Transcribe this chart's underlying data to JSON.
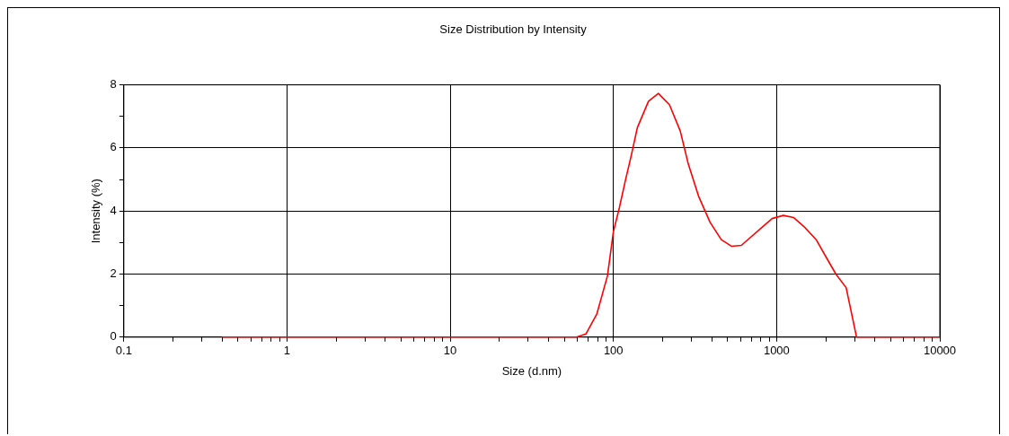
{
  "chart_data": {
    "type": "line",
    "title": "Size Distribution by Intensity",
    "xlabel": "Size (d.nm)",
    "ylabel": "Intensity (%)",
    "log": "x",
    "xlim": [
      0.1,
      10000
    ],
    "ylim": [
      0,
      8
    ],
    "xticks": [
      0.1,
      {
        "value": 0.2,
        "label": null
      },
      {
        "value": 0.3,
        "label": null
      },
      {
        "value": 0.4,
        "label": null
      },
      {
        "value": 0.5,
        "label": null
      },
      {
        "value": 0.6,
        "label": null
      },
      {
        "value": 0.7,
        "label": null
      },
      {
        "value": 0.8,
        "label": null
      },
      {
        "value": 0.9,
        "label": null
      },
      1,
      {
        "value": 2,
        "label": null
      },
      {
        "value": 3,
        "label": null
      },
      {
        "value": 4,
        "label": null
      },
      {
        "value": 5,
        "label": null
      },
      {
        "value": 6,
        "label": null
      },
      {
        "value": 7,
        "label": null
      },
      {
        "value": 8,
        "label": null
      },
      {
        "value": 9,
        "label": null
      },
      10,
      {
        "value": 20,
        "label": null
      },
      {
        "value": 30,
        "label": null
      },
      {
        "value": 40,
        "label": null
      },
      {
        "value": 50,
        "label": null
      },
      {
        "value": 60,
        "label": null
      },
      {
        "value": 70,
        "label": null
      },
      {
        "value": 80,
        "label": null
      },
      {
        "value": 90,
        "label": null
      },
      100,
      {
        "value": 200,
        "label": null
      },
      {
        "value": 300,
        "label": null
      },
      {
        "value": 400,
        "label": null
      },
      {
        "value": 500,
        "label": null
      },
      {
        "value": 600,
        "label": null
      },
      {
        "value": 700,
        "label": null
      },
      {
        "value": 800,
        "label": null
      },
      {
        "value": 900,
        "label": null
      },
      1000,
      {
        "value": 2000,
        "label": null
      },
      {
        "value": 3000,
        "label": null
      },
      {
        "value": 4000,
        "label": null
      },
      {
        "value": 5000,
        "label": null
      },
      {
        "value": 6000,
        "label": null
      },
      {
        "value": 7000,
        "label": null
      },
      {
        "value": 8000,
        "label": null
      },
      {
        "value": 9000,
        "label": null
      },
      10000
    ],
    "yticks": [
      0,
      {
        "value": 1,
        "label": null
      },
      2,
      {
        "value": 3,
        "label": null
      },
      4,
      {
        "value": 5,
        "label": null
      },
      6,
      {
        "value": 7,
        "label": null
      },
      8
    ],
    "grid": true,
    "marker": "none",
    "line_style": "solid",
    "series": [
      {
        "color": "#ff0000",
        "x": [
          0.4,
          45.7,
          59.4,
          67.8,
          79.2,
          91.9,
          100,
          108.7,
          118.4,
          128.9,
          140.1,
          164,
          188.5,
          220.5,
          256.6,
          287.6,
          333.6,
          391.4,
          458.1,
          530.6,
          607.6,
          938,
          1099,
          1273,
          1476,
          1748,
          2009,
          2308,
          2667,
          3090,
          10000
        ],
        "values": [
          0,
          0,
          0,
          0.1,
          0.74,
          1.94,
          3.35,
          4.1,
          4.97,
          5.78,
          6.64,
          7.48,
          7.73,
          7.37,
          6.54,
          5.49,
          4.45,
          3.64,
          3.09,
          2.88,
          2.91,
          3.76,
          3.86,
          3.79,
          3.5,
          3.09,
          2.54,
          2.0,
          1.57,
          0,
          0
        ]
      }
    ]
  }
}
